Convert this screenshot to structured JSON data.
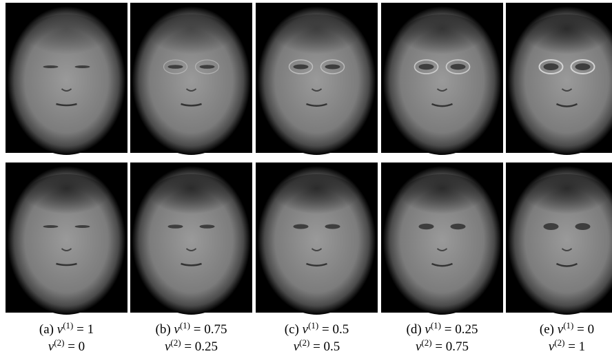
{
  "symbols": {
    "variable": "v",
    "sup1": "(1)",
    "sup2": "(2)",
    "equals": "="
  },
  "panels": [
    {
      "tag": "(a)",
      "v1": 1,
      "v2": 0
    },
    {
      "tag": "(b)",
      "v1": 0.75,
      "v2": 0.25
    },
    {
      "tag": "(c)",
      "v1": 0.5,
      "v2": 0.5
    },
    {
      "tag": "(d)",
      "v1": 0.25,
      "v2": 0.75
    },
    {
      "tag": "(e)",
      "v1": 0,
      "v2": 1
    }
  ]
}
